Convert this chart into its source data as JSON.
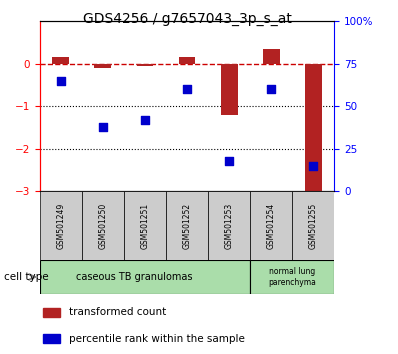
{
  "title": "GDS4256 / g7657043_3p_s_at",
  "samples": [
    "GSM501249",
    "GSM501250",
    "GSM501251",
    "GSM501252",
    "GSM501253",
    "GSM501254",
    "GSM501255"
  ],
  "transformed_counts": [
    0.15,
    -0.1,
    -0.05,
    0.15,
    -1.2,
    0.35,
    -3.0
  ],
  "percentile_ranks": [
    65,
    38,
    42,
    60,
    18,
    60,
    15
  ],
  "ylim_left": [
    -3,
    1
  ],
  "ylim_right": [
    0,
    100
  ],
  "yticks_left": [
    -3,
    -2,
    -1,
    0
  ],
  "yticks_right": [
    0,
    25,
    50,
    75,
    100
  ],
  "bar_color": "#b22222",
  "dot_color": "#0000cc",
  "ref_line_color": "#cc0000",
  "grid_color": "#000000",
  "title_fontsize": 10,
  "sample_fontsize": 5.5,
  "celltype_fontsize": 7,
  "legend_fontsize": 7.5,
  "cell_groups": [
    {
      "label": "caseous TB granulomas",
      "start": 0,
      "end": 5,
      "color": "#aaddaa"
    },
    {
      "label": "normal lung\nparenchyma",
      "start": 5,
      "end": 7,
      "color": "#aaddaa"
    }
  ],
  "legend_items": [
    {
      "label": "transformed count",
      "color": "#b22222"
    },
    {
      "label": "percentile rank within the sample",
      "color": "#0000cc"
    }
  ]
}
